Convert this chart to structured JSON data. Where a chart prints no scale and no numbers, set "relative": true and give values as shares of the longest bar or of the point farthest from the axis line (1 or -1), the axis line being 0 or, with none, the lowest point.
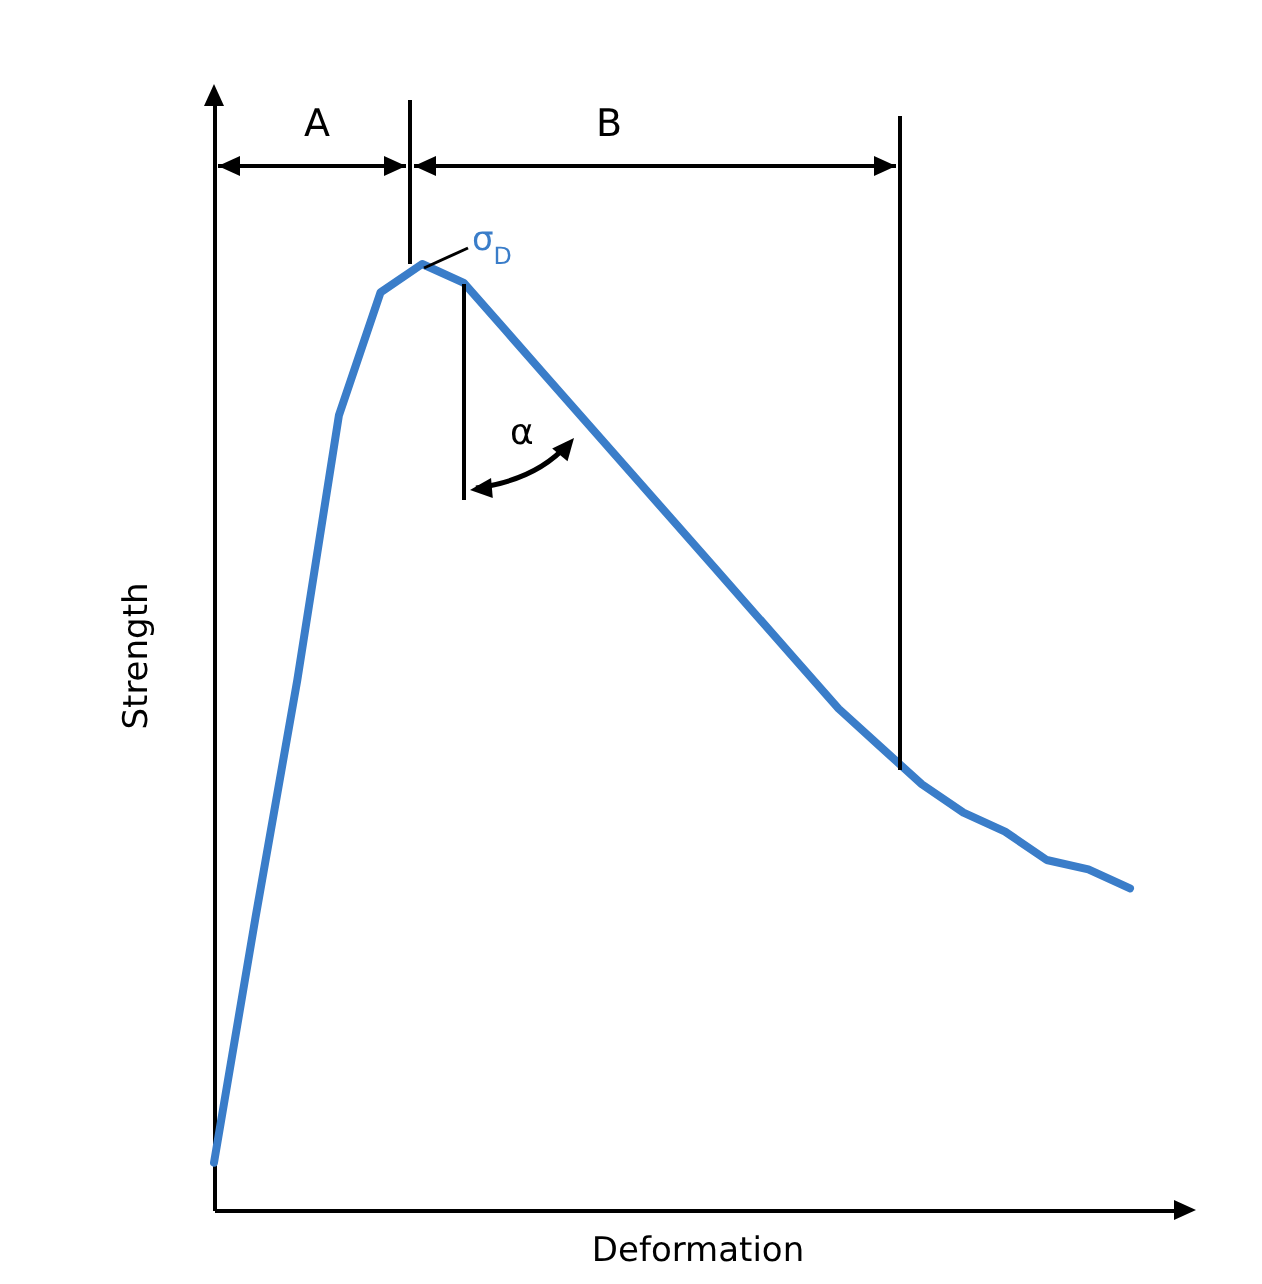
{
  "chart_data": {
    "type": "line",
    "relative": true,
    "xlabel": "Deformation",
    "ylabel": "Strength",
    "categories": [
      null,
      null,
      null,
      null,
      null,
      null,
      null,
      null,
      null,
      null,
      null,
      null,
      null,
      null,
      null,
      null,
      null,
      null,
      null,
      null,
      null,
      null,
      null
    ],
    "series": [
      {
        "color": "#3a7dc9",
        "values": [
          0.05,
          0.31,
          0.56,
          0.84,
          0.97,
          1,
          0.98,
          0.93,
          0.88,
          0.83,
          0.78,
          0.73,
          0.68,
          0.63,
          0.58,
          0.53,
          0.49,
          0.45,
          0.42,
          0.4,
          0.37,
          0.36,
          0.34
        ]
      }
    ],
    "marker": "none",
    "line_style": "solid",
    "annotations": [
      "A",
      "B",
      "σ$_{D}$",
      "α"
    ]
  }
}
